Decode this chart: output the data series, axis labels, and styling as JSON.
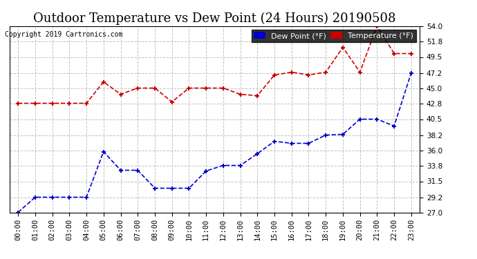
{
  "title": "Outdoor Temperature vs Dew Point (24 Hours) 20190508",
  "copyright": "Copyright 2019 Cartronics.com",
  "x_labels": [
    "00:00",
    "01:00",
    "02:00",
    "03:00",
    "04:00",
    "05:00",
    "06:00",
    "07:00",
    "08:00",
    "09:00",
    "10:00",
    "11:00",
    "12:00",
    "13:00",
    "14:00",
    "15:00",
    "16:00",
    "17:00",
    "18:00",
    "19:00",
    "20:00",
    "21:00",
    "22:00",
    "23:00"
  ],
  "temperature": [
    42.8,
    42.8,
    42.8,
    42.8,
    42.8,
    45.9,
    44.1,
    45.0,
    45.0,
    43.0,
    45.0,
    45.0,
    45.0,
    44.1,
    43.9,
    46.9,
    47.3,
    46.9,
    47.3,
    50.9,
    47.3,
    54.0,
    50.0,
    50.0
  ],
  "dew_point": [
    27.0,
    29.2,
    29.2,
    29.2,
    29.2,
    35.8,
    33.1,
    33.1,
    30.5,
    30.5,
    30.5,
    33.0,
    33.8,
    33.8,
    35.5,
    37.3,
    37.0,
    37.0,
    38.2,
    38.3,
    40.5,
    40.5,
    39.5,
    47.2
  ],
  "temp_color": "#cc0000",
  "dew_color": "#0000cc",
  "ylim_min": 27.0,
  "ylim_max": 54.0,
  "yticks": [
    27.0,
    29.2,
    31.5,
    33.8,
    36.0,
    38.2,
    40.5,
    42.8,
    45.0,
    47.2,
    49.5,
    51.8,
    54.0
  ],
  "background_color": "#ffffff",
  "plot_bg_color": "#ffffff",
  "grid_color": "#bbbbbb",
  "title_fontsize": 13,
  "legend_dew_label": "Dew Point (°F)",
  "legend_temp_label": "Temperature (°F)"
}
